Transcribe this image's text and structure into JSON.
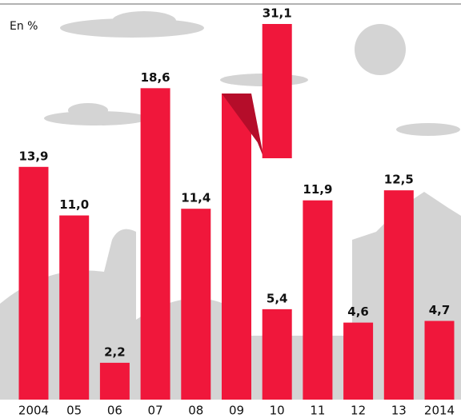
{
  "chart_data": {
    "type": "bar",
    "unit_label": "En %",
    "categories": [
      "2004",
      "05",
      "06",
      "07",
      "08",
      "09",
      "10",
      "11",
      "12",
      "13",
      "2014"
    ],
    "values": [
      13.9,
      11.0,
      2.2,
      18.6,
      11.4,
      31.1,
      5.4,
      11.9,
      4.6,
      12.5,
      4.7
    ],
    "value_labels": [
      "13,9",
      "11,0",
      "2,2",
      "18,6",
      "11,4",
      "31,1",
      "5,4",
      "11,9",
      "4,6",
      "12,5",
      "4,7"
    ],
    "color": "#f0173b"
  }
}
